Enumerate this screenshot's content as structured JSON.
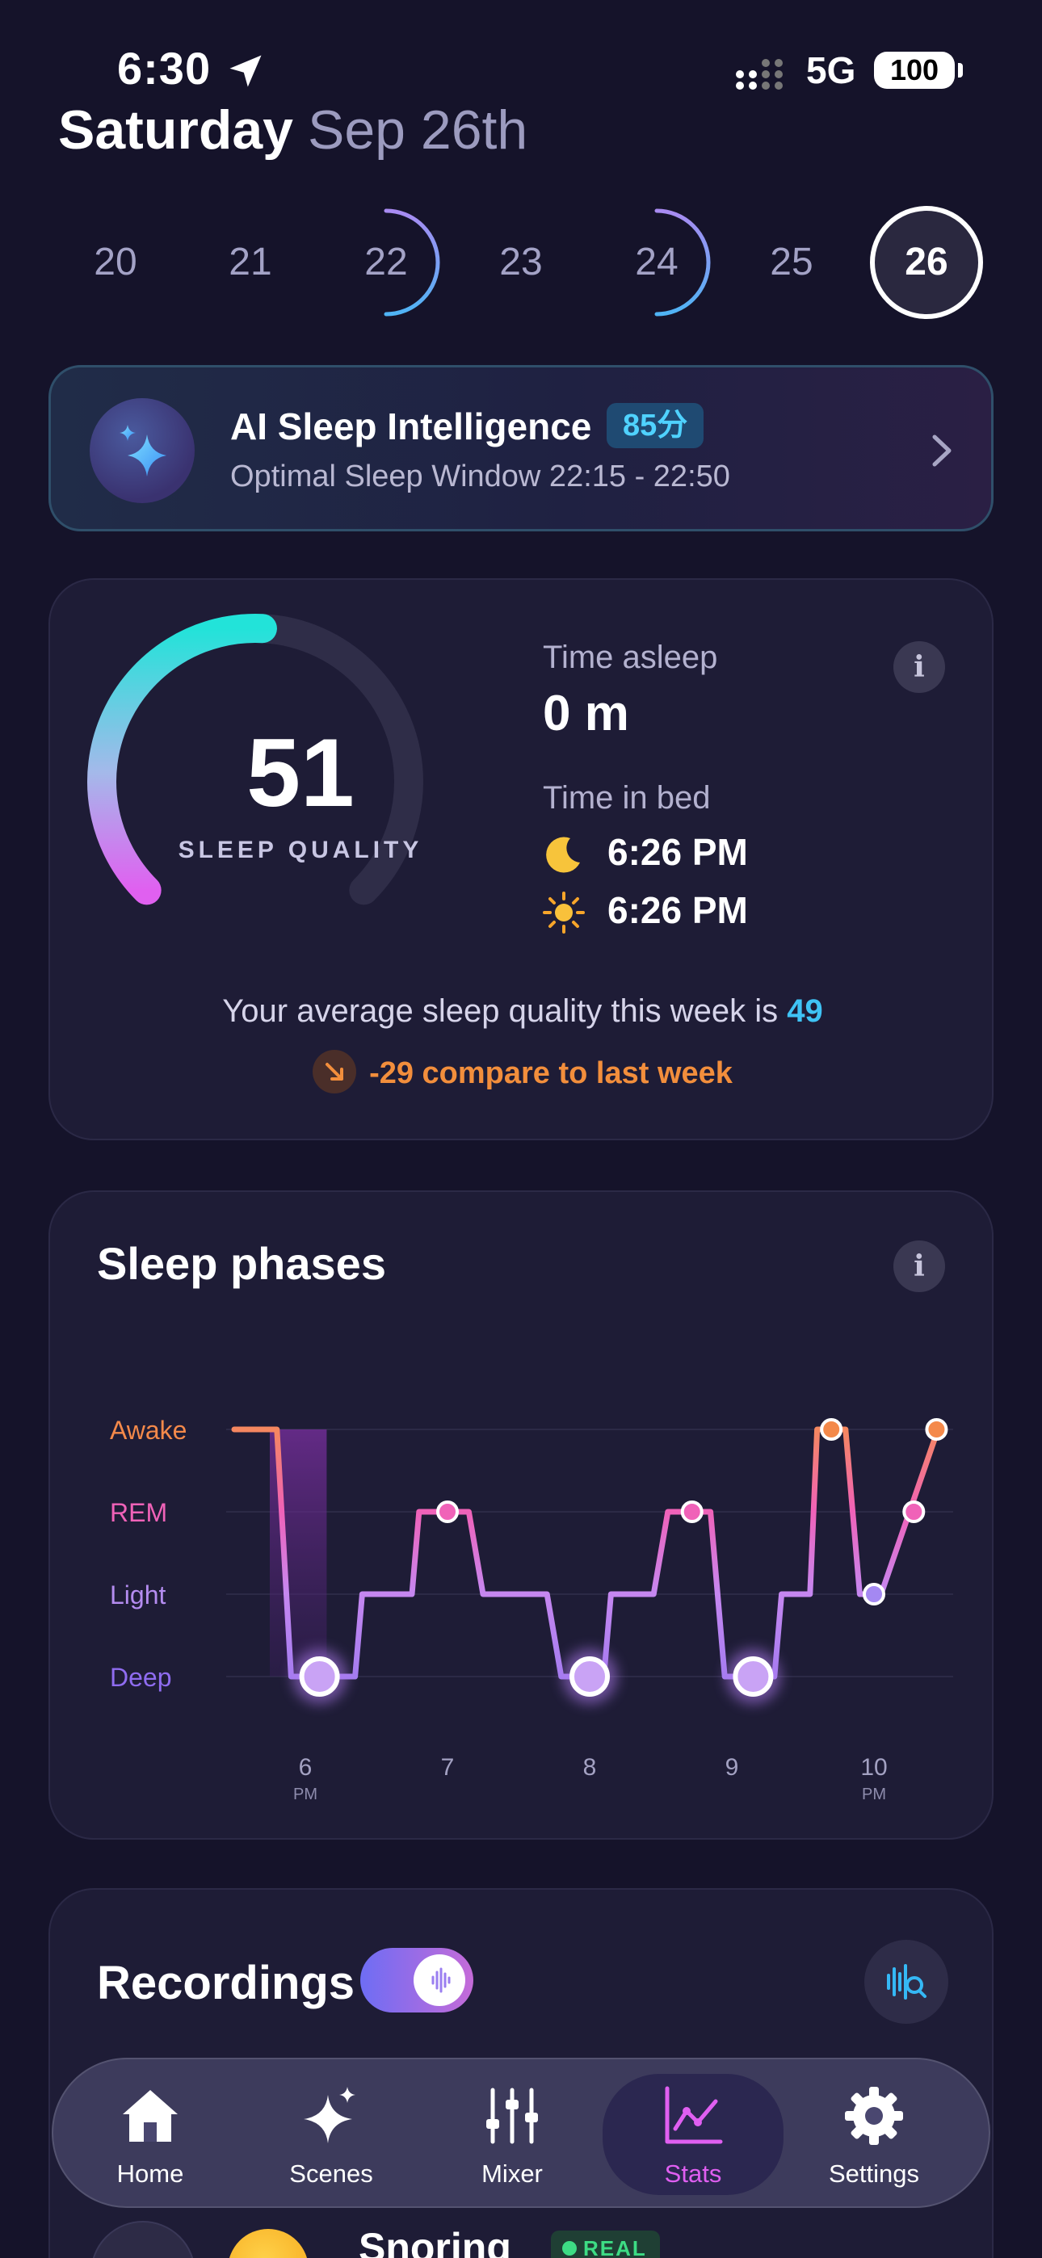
{
  "status_bar": {
    "time": "6:30",
    "network": "5G",
    "battery": "100"
  },
  "header": {
    "day": "Saturday",
    "date": "Sep 26th"
  },
  "day_strip": [
    {
      "label": "20",
      "state": "none"
    },
    {
      "label": "21",
      "state": "none"
    },
    {
      "label": "22",
      "state": "arc"
    },
    {
      "label": "23",
      "state": "none"
    },
    {
      "label": "24",
      "state": "arc"
    },
    {
      "label": "25",
      "state": "none"
    },
    {
      "label": "26",
      "state": "selected"
    }
  ],
  "ai_card": {
    "title": "AI Sleep Intelligence",
    "badge": "85分",
    "subtitle": "Optimal Sleep Window 22:15 - 22:50"
  },
  "quality_card": {
    "score": "51",
    "score_label": "SLEEP QUALITY",
    "score_fraction": 0.51,
    "time_asleep_label": "Time asleep",
    "time_asleep_value": "0 m",
    "time_in_bed_label": "Time in bed",
    "bedtime": "6:26 PM",
    "waketime": "6:26 PM",
    "average_text": "Your average sleep quality this week is",
    "average_value": "49",
    "compare_text": "-29 compare to last week",
    "info_label": "i"
  },
  "phases_card": {
    "title": "Sleep phases",
    "info_label": "i",
    "chart_data": {
      "type": "line",
      "title": "Sleep phases",
      "y_categories": [
        "Deep",
        "Light",
        "REM",
        "Awake"
      ],
      "y_colors": [
        "#8f6cf0",
        "#b48cf0",
        "#f062b8",
        "#f4894a"
      ],
      "x_ticks": [
        {
          "label": "6",
          "sub": "PM",
          "value": 6
        },
        {
          "label": "7",
          "sub": "",
          "value": 7
        },
        {
          "label": "8",
          "sub": "",
          "value": 8
        },
        {
          "label": "9",
          "sub": "",
          "value": 9
        },
        {
          "label": "10",
          "sub": "PM",
          "value": 10
        }
      ],
      "xlim": [
        5.5,
        10.5
      ],
      "series": [
        {
          "points": [
            [
              5.5,
              "Awake"
            ],
            [
              5.8,
              "Awake"
            ],
            [
              5.9,
              "Deep"
            ],
            [
              6.35,
              "Deep"
            ],
            [
              6.4,
              "Light"
            ],
            [
              6.75,
              "Light"
            ],
            [
              6.8,
              "REM"
            ],
            [
              7.15,
              "REM"
            ],
            [
              7.25,
              "Light"
            ],
            [
              7.7,
              "Light"
            ],
            [
              7.8,
              "Deep"
            ],
            [
              8.1,
              "Deep"
            ],
            [
              8.15,
              "Light"
            ],
            [
              8.45,
              "Light"
            ],
            [
              8.55,
              "REM"
            ],
            [
              8.85,
              "REM"
            ],
            [
              8.95,
              "Deep"
            ],
            [
              9.3,
              "Deep"
            ],
            [
              9.35,
              "Light"
            ],
            [
              9.55,
              "Light"
            ],
            [
              9.6,
              "Awake"
            ],
            [
              9.8,
              "Awake"
            ],
            [
              9.9,
              "Light"
            ],
            [
              10.05,
              "Light"
            ],
            [
              10.25,
              "REM"
            ],
            [
              10.45,
              "Awake"
            ]
          ]
        }
      ],
      "markers": [
        [
          6.1,
          "Deep"
        ],
        [
          7.0,
          "REM"
        ],
        [
          8.0,
          "Deep"
        ],
        [
          8.72,
          "REM"
        ],
        [
          9.15,
          "Deep"
        ],
        [
          9.7,
          "Awake"
        ],
        [
          10.0,
          "Light"
        ],
        [
          10.28,
          "REM"
        ],
        [
          10.44,
          "Awake"
        ]
      ]
    }
  },
  "recordings_card": {
    "title": "Recordings",
    "item_name": "Snoring",
    "item_tag": "REAL"
  },
  "tabbar": [
    {
      "label": "Home",
      "icon": "home-icon",
      "active": false
    },
    {
      "label": "Scenes",
      "icon": "sparkles-icon",
      "active": false
    },
    {
      "label": "Mixer",
      "icon": "sliders-icon",
      "active": false
    },
    {
      "label": "Stats",
      "icon": "chart-icon",
      "active": true
    },
    {
      "label": "Settings",
      "icon": "gear-icon",
      "active": false
    }
  ]
}
